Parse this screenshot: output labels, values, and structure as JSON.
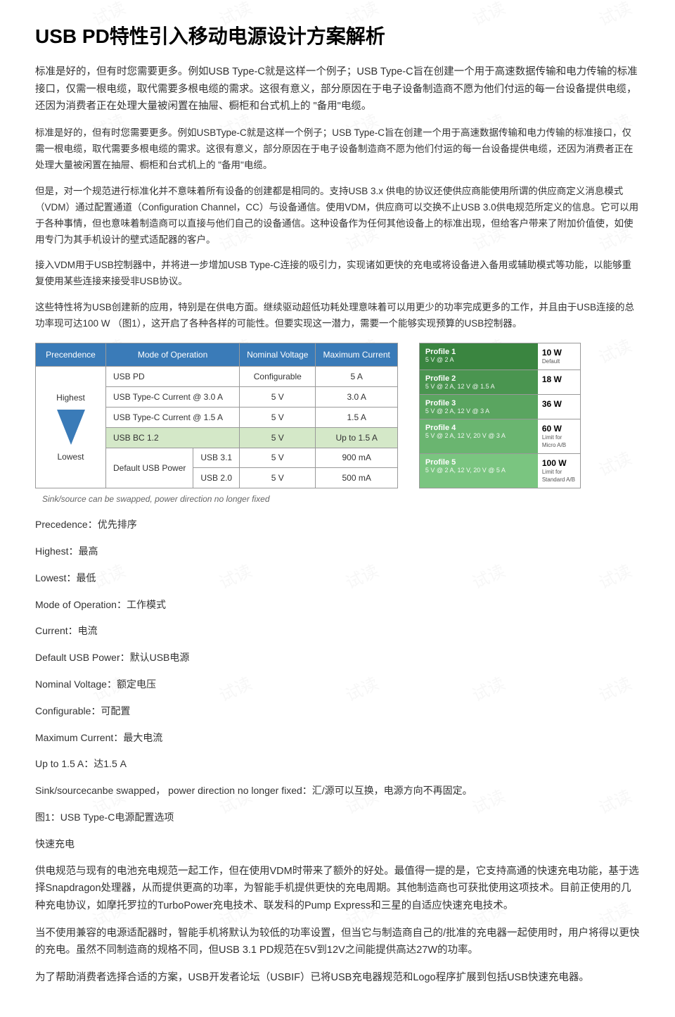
{
  "title": "USB PD特性引入移动电源设计方案解析",
  "para": [
    "标准是好的，但有时您需要更多。例如USB Type-C就是这样一个例子；USB Type-C旨在创建一个用于高速数据传输和电力传输的标准接口，仅需一根电缆，取代需要多根电缆的需求。这很有意义，部分原因在于电子设备制造商不愿为他们付运的每一台设备提供电缆，还因为消费者正在处理大量被闲置在抽屉、橱柜和台式机上的 \"备用\"电缆。",
    "标准是好的，但有时您需要更多。例如USBType-C就是这样一个例子；USB Type-C旨在创建一个用于高速数据传输和电力传输的标准接口，仅需一根电缆，取代需要多根电缆的需求。这很有意义，部分原因在于电子设备制造商不愿为他们付运的每一台设备提供电缆，还因为消费者正在处理大量被闲置在抽屉、橱柜和台式机上的 \"备用\"电缆。",
    "但是，对一个规范进行标准化并不意味着所有设备的创建都是相同的。支持USB 3.x 供电的协议还使供应商能使用所谓的供应商定义消息模式（VDM）通过配置通道（Configuration Channel，CC）与设备通信。使用VDM，供应商可以交换不止USB 3.0供电规范所定义的信息。它可以用于各种事情，但也意味着制造商可以直接与他们自己的设备通信。这种设备作为任何其他设备上的标准出现，但给客户带来了附加价值使，如使用专门为其手机设计的壁式适配器的客户。",
    "接入VDM用于USB控制器中，并将进一步增加USB Type-C连接的吸引力，实现诸如更快的充电或将设备进入备用或辅助模式等功能，以能够重复使用某些连接来接受非USB协议。",
    "这些特性将为USB创建新的应用，特别是在供电方面。继续驱动超低功耗处理意味着可以用更少的功率完成更多的工作，并且由于USB连接的总功率现可达100 W （图1），这开启了各种各样的可能性。但要实现这一潜力，需要一个能够实现预算的USB控制器。"
  ],
  "table": {
    "headers": [
      "Precendence",
      "Mode of Operation",
      "Nominal Voltage",
      "Maximum Current"
    ],
    "prec_hi": "Highest",
    "prec_lo": "Lowest",
    "rows": [
      {
        "mode": "USB PD",
        "sub": "",
        "nv": "Configurable",
        "mc": "5 A",
        "bc": false
      },
      {
        "mode": "USB Type-C Current @ 3.0 A",
        "sub": "",
        "nv": "5 V",
        "mc": "3.0 A",
        "bc": false
      },
      {
        "mode": "USB Type-C Current @ 1.5 A",
        "sub": "",
        "nv": "5 V",
        "mc": "1.5 A",
        "bc": false
      },
      {
        "mode": "USB BC 1.2",
        "sub": "",
        "nv": "5 V",
        "mc": "Up to 1.5 A",
        "bc": true
      },
      {
        "mode": "Default USB Power",
        "sub": "USB 3.1",
        "nv": "5 V",
        "mc": "900 mA",
        "bc": false
      },
      {
        "mode": "",
        "sub": "USB 2.0",
        "nv": "5 V",
        "mc": "500 mA",
        "bc": false
      }
    ]
  },
  "profiles": [
    {
      "t": "Profile 1",
      "s": "5 V @ 2 A",
      "w": "10 W",
      "n": "Default"
    },
    {
      "t": "Profile 2",
      "s": "5 V @ 2 A, 12 V @ 1.5 A",
      "w": "18 W",
      "n": ""
    },
    {
      "t": "Profile 3",
      "s": "5 V @ 2 A, 12 V @ 3 A",
      "w": "36 W",
      "n": ""
    },
    {
      "t": "Profile 4",
      "s": "5 V @ 2 A, 12 V, 20 V @ 3 A",
      "w": "60 W",
      "n": "Limit for Micro A/B"
    },
    {
      "t": "Profile 5",
      "s": "5 V @ 2 A, 12 V, 20 V @ 5 A",
      "w": "100 W",
      "n": "Limit for Standard A/B"
    }
  ],
  "caption": "Sink/source can be swapped, power direction no longer fixed",
  "defs": [
    "Precedence：优先排序",
    "Highest：最高",
    "Lowest：最低",
    "Mode of Operation：工作模式",
    "Current：电流",
    "Default USB Power：默认USB电源",
    "Nominal Voltage：额定电压",
    "Configurable：可配置",
    "Maximum Current：最大电流",
    "Up to 1.5 A：达1.5 A",
    "Sink/sourcecanbe swapped， power direction no longer fixed：汇/源可以互换，电源方向不再固定。",
    "图1：USB Type-C电源配置选项",
    "快速充电"
  ],
  "para2": [
    "供电规范与现有的电池充电规范一起工作，但在使用VDM时带来了额外的好处。最值得一提的是，它支持高通的快速充电功能，基于选择Snapdragon处理器，从而提供更高的功率，为智能手机提供更快的充电周期。其他制造商也可获批使用这项技术。目前正使用的几种充电协议，如摩托罗拉的TurboPower充电技术、联发科的Pump Express和三星的自适应快速充电技术。",
    "当不使用兼容的电源适配器时，智能手机将默认为较低的功率设置，但当它与制造商自己的/批准的充电器一起使用时，用户将得以更快的充电。虽然不同制造商的规格不同，但USB 3.1 PD规范在5V到12V之间能提供高达27W的功率。",
    "为了帮助消费者选择合适的方案，USB开发者论坛（USBIF）已将USB充电器规范和Logo程序扩展到包括USB快速充电器。"
  ],
  "wm": "试读"
}
